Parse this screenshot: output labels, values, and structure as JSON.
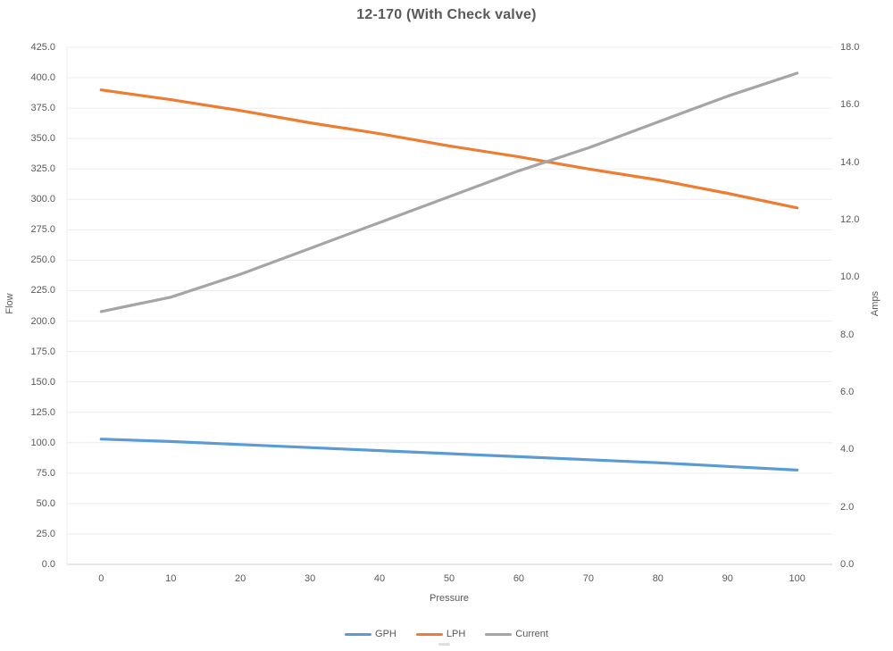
{
  "title": "12-170 (With Check valve)",
  "chart_data": {
    "type": "line",
    "title": "12-170 (With Check valve)",
    "xlabel": "Pressure",
    "x": [
      0,
      10,
      20,
      30,
      40,
      50,
      60,
      70,
      80,
      90,
      100
    ],
    "x_ticks": [
      "0",
      "10",
      "20",
      "30",
      "40",
      "50",
      "60",
      "70",
      "80",
      "90",
      "100"
    ],
    "x_range": [
      0,
      100
    ],
    "y_left": {
      "label": "Flow",
      "min": 0,
      "max": 425,
      "step": 25
    },
    "y_left_ticks": [
      "0.0",
      "25.0",
      "50.0",
      "75.0",
      "100.0",
      "125.0",
      "150.0",
      "175.0",
      "200.0",
      "225.0",
      "250.0",
      "275.0",
      "300.0",
      "325.0",
      "350.0",
      "375.0",
      "400.0",
      "425.0"
    ],
    "y_right": {
      "label": "Amps",
      "min": 0,
      "max": 18,
      "step": 2
    },
    "y_right_ticks": [
      "0.0",
      "2.0",
      "4.0",
      "6.0",
      "8.0",
      "10.0",
      "12.0",
      "14.0",
      "16.0",
      "18.0"
    ],
    "grid": true,
    "legend_position": "bottom",
    "series": [
      {
        "name": "GPH",
        "axis": "left",
        "color": "#5B9BD5",
        "values": [
          103,
          101,
          98.5,
          96,
          93.5,
          91,
          88.5,
          86,
          83.5,
          80.5,
          77.5
        ]
      },
      {
        "name": "LPH",
        "axis": "left",
        "color": "#ED7D31",
        "values": [
          390,
          382,
          373,
          363,
          354,
          344,
          335,
          325,
          316,
          305,
          293
        ]
      },
      {
        "name": "Current",
        "axis": "right",
        "color": "#A5A5A5",
        "values": [
          8.8,
          9.3,
          10.1,
          11.0,
          11.9,
          12.8,
          13.7,
          14.5,
          15.4,
          16.3,
          17.1
        ]
      }
    ],
    "colors": {
      "axis_text": "#595959",
      "gridline": "#ececec",
      "axis_line": "#d6d6d6"
    }
  }
}
